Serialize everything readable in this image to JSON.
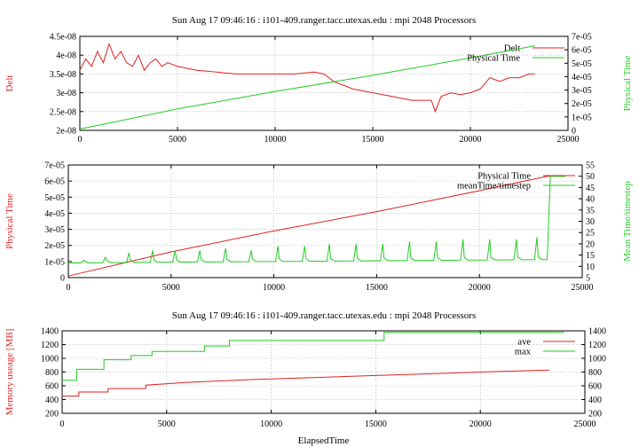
{
  "chart_data": [
    {
      "type": "line",
      "title": "Sun Aug 17 09:46:16 : i101-409.ranger.tacc.utexas.edu : mpi 2048 Processors",
      "ylabel": "Delt",
      "y2label": "Physical Time",
      "xlabel": "",
      "xlim": [
        0,
        25000
      ],
      "ylim": [
        2e-08,
        4.5e-08
      ],
      "y2lim": [
        0,
        7e-05
      ],
      "xticks": [
        "0",
        "5000",
        "10000",
        "15000",
        "20000",
        "25000"
      ],
      "yticks": [
        "2e-08",
        "2.5e-08",
        "3e-08",
        "3.5e-08",
        "4e-08",
        "4.5e-08"
      ],
      "y2ticks": [
        "0",
        "1e-05",
        "2e-05",
        "3e-05",
        "4e-05",
        "5e-05",
        "6e-05",
        "7e-05"
      ],
      "grid": true,
      "legend_position": "top-right",
      "series": [
        {
          "name": "Delt",
          "axis": "left",
          "color": "#dd2222",
          "x": [
            0,
            300,
            600,
            900,
            1200,
            1500,
            1800,
            2100,
            2400,
            2700,
            3000,
            3300,
            3600,
            3900,
            4200,
            4500,
            5000,
            6000,
            7000,
            8000,
            9000,
            10000,
            11000,
            12000,
            12500,
            13000,
            13500,
            14000,
            15000,
            16000,
            17000,
            18000,
            18200,
            18500,
            19000,
            19500,
            20000,
            20500,
            21000,
            21500,
            22000,
            22500,
            23000,
            23300
          ],
          "y": [
            3.6e-08,
            3.9e-08,
            3.7e-08,
            4.1e-08,
            3.8e-08,
            4.3e-08,
            3.9e-08,
            4.1e-08,
            3.8e-08,
            3.7e-08,
            4e-08,
            3.6e-08,
            3.8e-08,
            3.9e-08,
            3.7e-08,
            3.8e-08,
            3.7e-08,
            3.6e-08,
            3.55e-08,
            3.5e-08,
            3.5e-08,
            3.5e-08,
            3.5e-08,
            3.55e-08,
            3.5e-08,
            3.3e-08,
            3.2e-08,
            3.1e-08,
            3e-08,
            2.9e-08,
            2.8e-08,
            2.8e-08,
            2.5e-08,
            2.9e-08,
            3e-08,
            2.95e-08,
            3e-08,
            3.1e-08,
            3.4e-08,
            3.3e-08,
            3.4e-08,
            3.4e-08,
            3.5e-08,
            3.5e-08
          ]
        },
        {
          "name": "Physical Time",
          "axis": "right",
          "color": "#22cc22",
          "x": [
            0,
            5000,
            10000,
            15000,
            20000,
            23300
          ],
          "y": [
            1e-06,
            1.6e-05,
            2.9e-05,
            4.1e-05,
            5.4e-05,
            6.3e-05
          ]
        }
      ]
    },
    {
      "type": "line",
      "title": "",
      "ylabel": "Physical Time",
      "y2label": "Mean Time/timestep",
      "xlabel": "",
      "xlim": [
        0,
        25000
      ],
      "ylim": [
        0,
        7e-05
      ],
      "y2lim": [
        5,
        55
      ],
      "xticks": [
        "0",
        "5000",
        "10000",
        "15000",
        "20000",
        "25000"
      ],
      "yticks": [
        "0",
        "1e-05",
        "2e-05",
        "3e-05",
        "4e-05",
        "5e-05",
        "6e-05",
        "7e-05"
      ],
      "y2ticks": [
        "5",
        "10",
        "15",
        "20",
        "25",
        "30",
        "35",
        "40",
        "45",
        "50",
        "55"
      ],
      "grid": true,
      "legend_position": "top-right",
      "series": [
        {
          "name": "Physical Time",
          "axis": "left",
          "color": "#dd2222",
          "x": [
            0,
            5000,
            10000,
            15000,
            20000,
            23300,
            24200
          ],
          "y": [
            1e-06,
            1.6e-05,
            2.9e-05,
            4.1e-05,
            5.4e-05,
            6.3e-05,
            6.3e-05
          ]
        },
        {
          "name": "meanTime/timestep",
          "axis": "right",
          "color": "#22cc22",
          "baseline": 11.5,
          "baseline_end": 13,
          "peaks": [
            {
              "x": 700,
              "y": 12
            },
            {
              "x": 1800,
              "y": 14
            },
            {
              "x": 2950,
              "y": 16
            },
            {
              "x": 4100,
              "y": 17
            },
            {
              "x": 5200,
              "y": 17
            },
            {
              "x": 6400,
              "y": 17
            },
            {
              "x": 7650,
              "y": 18
            },
            {
              "x": 8900,
              "y": 17
            },
            {
              "x": 10200,
              "y": 19
            },
            {
              "x": 11500,
              "y": 19
            },
            {
              "x": 12700,
              "y": 20
            },
            {
              "x": 14000,
              "y": 20
            },
            {
              "x": 15300,
              "y": 20
            },
            {
              "x": 16600,
              "y": 21
            },
            {
              "x": 17900,
              "y": 21
            },
            {
              "x": 19200,
              "y": 22
            },
            {
              "x": 20500,
              "y": 22
            },
            {
              "x": 21800,
              "y": 22
            },
            {
              "x": 22800,
              "y": 23
            }
          ],
          "x_end": 23300,
          "y_jump": 50,
          "x_final": 24200
        }
      ]
    },
    {
      "type": "line",
      "title": "Sun Aug 17 09:46:16 : i101-409.ranger.tacc.utexas.edu : mpi 2048 Processors",
      "ylabel": "Memory useage [MB]",
      "y2label": "",
      "xlabel": "ElapsedTime",
      "xlim": [
        0,
        25000
      ],
      "ylim": [
        200,
        1400
      ],
      "y2lim": [
        200,
        1400
      ],
      "xticks": [
        "0",
        "5000",
        "10000",
        "15000",
        "20000",
        "25000"
      ],
      "yticks": [
        "200",
        "400",
        "600",
        "800",
        "1000",
        "1200",
        "1400"
      ],
      "y2ticks": [
        "200",
        "400",
        "600",
        "800",
        "1000",
        "1200",
        "1400"
      ],
      "grid": true,
      "legend_position": "top-right",
      "series": [
        {
          "name": "ave",
          "axis": "left",
          "color": "#dd2222",
          "x": [
            0,
            800,
            800,
            2200,
            2200,
            4000,
            4000,
            6000,
            9000,
            12000,
            15000,
            18000,
            21000,
            23300
          ],
          "y": [
            450,
            450,
            510,
            510,
            560,
            560,
            610,
            650,
            690,
            720,
            750,
            780,
            810,
            830
          ]
        },
        {
          "name": "max",
          "axis": "left",
          "color": "#22cc22",
          "x": [
            0,
            700,
            700,
            2000,
            2000,
            3300,
            3300,
            4300,
            4300,
            6800,
            6800,
            8000,
            8000,
            15400,
            15400,
            24000
          ],
          "y": [
            680,
            680,
            840,
            840,
            980,
            980,
            1040,
            1040,
            1100,
            1100,
            1180,
            1180,
            1260,
            1260,
            1380,
            1380
          ]
        }
      ]
    }
  ]
}
